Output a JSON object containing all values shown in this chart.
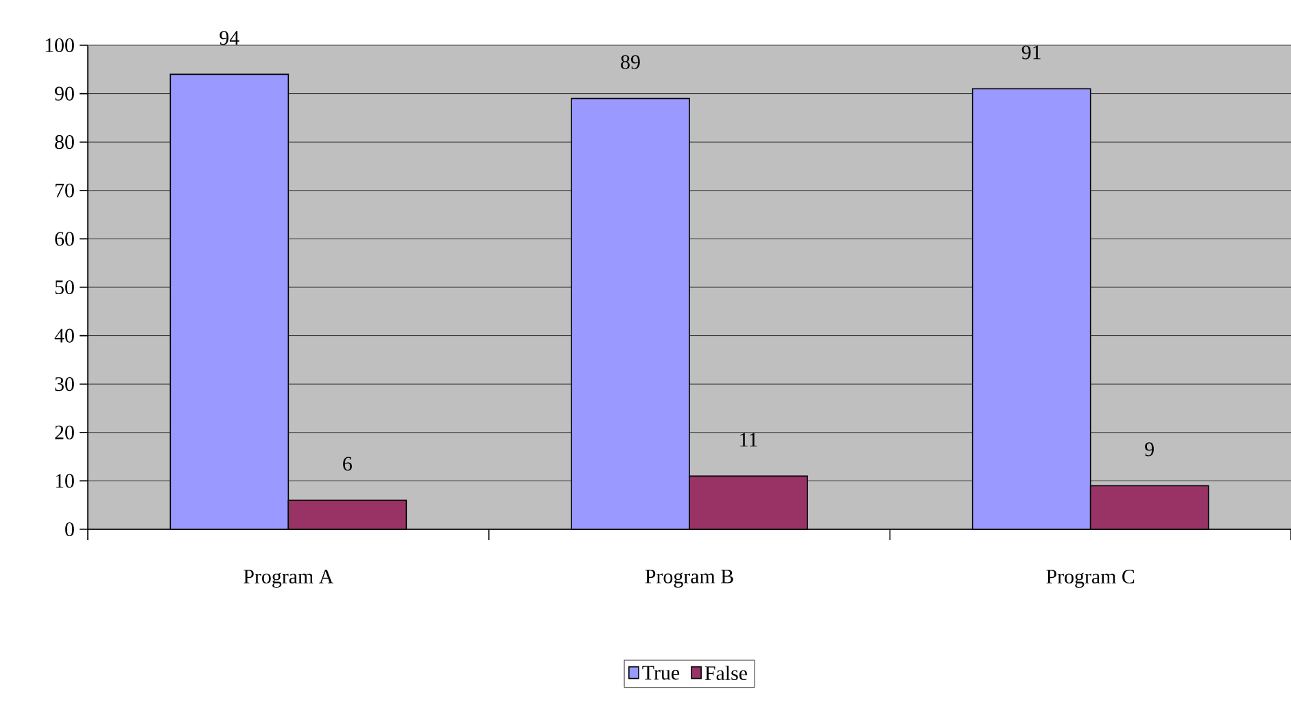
{
  "chart_data": {
    "type": "bar",
    "categories": [
      "Program A",
      "Program B",
      "Program C"
    ],
    "series": [
      {
        "name": "True",
        "color": "#9999ff",
        "values": [
          94,
          89,
          91
        ]
      },
      {
        "name": "False",
        "color": "#993366",
        "values": [
          6,
          11,
          9
        ]
      }
    ],
    "ylim": [
      0,
      100
    ],
    "yticks": [
      0,
      10,
      20,
      30,
      40,
      50,
      60,
      70,
      80,
      90,
      100
    ],
    "grid": "y",
    "legend": "bottom",
    "data_labels": true
  }
}
